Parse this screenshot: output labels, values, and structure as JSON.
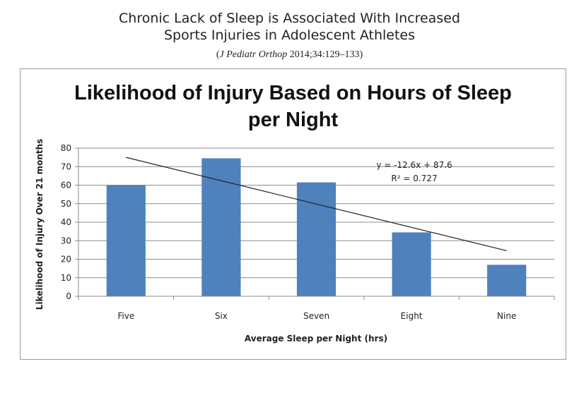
{
  "header": {
    "title_line1": "Chronic Lack of Sleep is Associated With Increased",
    "title_line2": "Sports Injuries in Adolescent Athletes",
    "citation_open": "(",
    "citation_journal": "J Pediatr Orthop",
    "citation_rest": " 2014;34:129–133)"
  },
  "chart_data": {
    "type": "bar",
    "title_line1": "Likelihood of Injury Based on Hours of Sleep",
    "title_line2": "per Night",
    "categories": [
      "Five",
      "Six",
      "Seven",
      "Eight",
      "Nine"
    ],
    "values": [
      60,
      74.5,
      61.5,
      34.5,
      17
    ],
    "xlabel": "Average Sleep per Night (hrs)",
    "ylabel": "Likelihood of Injury Over 21 months",
    "ylim": [
      0,
      80
    ],
    "yticks": [
      0,
      10,
      20,
      30,
      40,
      50,
      60,
      70,
      80
    ],
    "grid": true,
    "legend": "none",
    "bar_color": "#4f81bd",
    "trendline": {
      "slope": -12.6,
      "intercept": 87.6,
      "equation": "y = -12.6x + 87.6",
      "r_squared": "R² = 0.727"
    }
  }
}
